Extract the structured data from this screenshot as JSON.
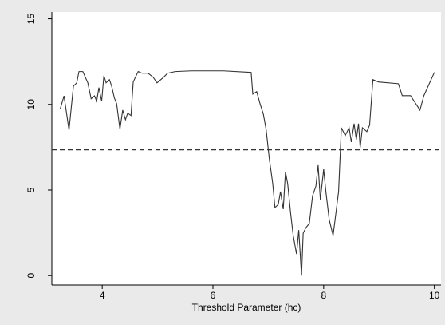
{
  "chart_data": {
    "type": "line",
    "x_label": "Threshold Parameter (hc)",
    "xlim": [
      3.09,
      10.12
    ],
    "xticks": [
      4,
      6,
      8,
      10
    ],
    "ylim": [
      -0.55,
      15.4
    ],
    "yticks": [
      0,
      5,
      10,
      15
    ],
    "hline": 7.35,
    "series": [
      {
        "color": "#333333",
        "x": [
          3.24,
          3.31,
          3.4,
          3.48,
          3.54,
          3.58,
          3.65,
          3.74,
          3.8,
          3.86,
          3.9,
          3.94,
          3.99,
          4.03,
          4.07,
          4.13,
          4.17,
          4.22,
          4.26,
          4.32,
          4.37,
          4.42,
          4.46,
          4.52,
          4.56,
          4.6,
          4.65,
          4.72,
          4.83,
          4.92,
          4.99,
          5.11,
          5.18,
          5.32,
          5.61,
          6.19,
          6.69,
          6.72,
          6.79,
          6.85,
          6.91,
          6.96,
          7.02,
          7.08,
          7.12,
          7.18,
          7.22,
          7.27,
          7.31,
          7.35,
          7.4,
          7.45,
          7.51,
          7.55,
          7.6,
          7.63,
          7.68,
          7.74,
          7.8,
          7.86,
          7.9,
          7.94,
          8.0,
          8.04,
          8.1,
          8.17,
          8.23,
          8.27,
          8.32,
          8.39,
          8.46,
          8.5,
          8.55,
          8.59,
          8.63,
          8.66,
          8.7,
          8.78,
          8.83,
          8.89,
          8.99,
          9.35,
          9.42,
          9.57,
          9.74,
          9.81,
          10.0
        ],
        "values": [
          9.72,
          10.5,
          8.5,
          11.07,
          11.26,
          11.92,
          11.92,
          11.26,
          10.33,
          10.5,
          10.19,
          10.98,
          10.19,
          11.68,
          11.26,
          11.45,
          11.07,
          10.37,
          10.05,
          8.55,
          9.67,
          9.11,
          9.49,
          9.35,
          11.31,
          11.59,
          11.92,
          11.82,
          11.82,
          11.59,
          11.26,
          11.59,
          11.82,
          11.92,
          11.96,
          11.96,
          11.87,
          10.6,
          10.75,
          10.05,
          9.44,
          8.55,
          6.78,
          5.37,
          3.97,
          4.16,
          4.91,
          3.88,
          6.07,
          5.37,
          3.74,
          2.34,
          1.26,
          2.66,
          0,
          2.48,
          2.8,
          3.04,
          4.67,
          5.23,
          6.45,
          4.44,
          6.21,
          4.91,
          3.27,
          2.34,
          3.88,
          4.91,
          8.64,
          8.18,
          8.64,
          7.8,
          8.88,
          7.94,
          8.88,
          7.48,
          8.64,
          8.41,
          8.79,
          11.45,
          11.31,
          11.21,
          10.51,
          10.51,
          9.67,
          10.51,
          11.87
        ]
      }
    ]
  }
}
